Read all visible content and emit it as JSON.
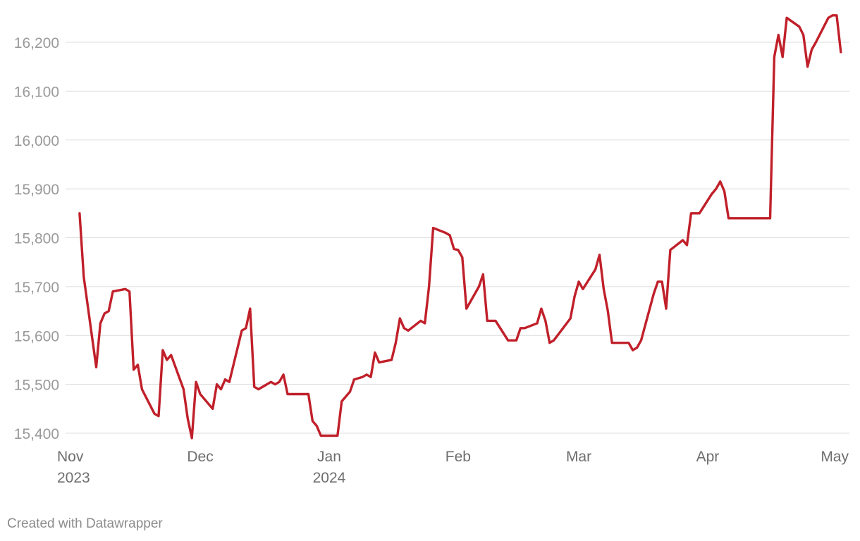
{
  "chart_data": {
    "type": "line",
    "title": "",
    "xlabel": "",
    "ylabel": "",
    "ylim": [
      15400,
      16200
    ],
    "grid": true,
    "x_range": [
      "2023-11-01",
      "2024-05-01"
    ],
    "yticks": [
      {
        "value": 15400,
        "label": "15,400"
      },
      {
        "value": 15500,
        "label": "15,500"
      },
      {
        "value": 15600,
        "label": "15,600"
      },
      {
        "value": 15700,
        "label": "15,700"
      },
      {
        "value": 15800,
        "label": "15,800"
      },
      {
        "value": 15900,
        "label": "15,900"
      },
      {
        "value": 16000,
        "label": "16,000"
      },
      {
        "value": 16100,
        "label": "16,100"
      },
      {
        "value": 16200,
        "label": "16,200"
      }
    ],
    "xticks": [
      {
        "date": "2023-11-01",
        "label": "Nov",
        "sublabel": "2023"
      },
      {
        "date": "2023-12-01",
        "label": "Dec",
        "sublabel": ""
      },
      {
        "date": "2024-01-01",
        "label": "Jan",
        "sublabel": "2024"
      },
      {
        "date": "2024-02-01",
        "label": "Feb",
        "sublabel": ""
      },
      {
        "date": "2024-03-01",
        "label": "Mar",
        "sublabel": ""
      },
      {
        "date": "2024-04-01",
        "label": "Apr",
        "sublabel": ""
      },
      {
        "date": "2024-05-01",
        "label": "May",
        "sublabel": ""
      }
    ],
    "series": [
      {
        "color": "#c0202a",
        "points": [
          [
            "2023-11-02",
            15850
          ],
          [
            "2023-11-03",
            15720
          ],
          [
            "2023-11-06",
            15535
          ],
          [
            "2023-11-07",
            15625
          ],
          [
            "2023-11-08",
            15645
          ],
          [
            "2023-11-09",
            15650
          ],
          [
            "2023-11-10",
            15690
          ],
          [
            "2023-11-13",
            15695
          ],
          [
            "2023-11-14",
            15690
          ],
          [
            "2023-11-15",
            15530
          ],
          [
            "2023-11-16",
            15540
          ],
          [
            "2023-11-17",
            15490
          ],
          [
            "2023-11-20",
            15440
          ],
          [
            "2023-11-21",
            15435
          ],
          [
            "2023-11-22",
            15570
          ],
          [
            "2023-11-23",
            15550
          ],
          [
            "2023-11-24",
            15560
          ],
          [
            "2023-11-27",
            15490
          ],
          [
            "2023-11-28",
            15430
          ],
          [
            "2023-11-29",
            15390
          ],
          [
            "2023-11-30",
            15505
          ],
          [
            "2023-12-01",
            15480
          ],
          [
            "2023-12-04",
            15450
          ],
          [
            "2023-12-05",
            15500
          ],
          [
            "2023-12-06",
            15490
          ],
          [
            "2023-12-07",
            15510
          ],
          [
            "2023-12-08",
            15505
          ],
          [
            "2023-12-11",
            15610
          ],
          [
            "2023-12-12",
            15615
          ],
          [
            "2023-12-13",
            15655
          ],
          [
            "2023-12-14",
            15495
          ],
          [
            "2023-12-15",
            15490
          ],
          [
            "2023-12-18",
            15505
          ],
          [
            "2023-12-19",
            15500
          ],
          [
            "2023-12-20",
            15505
          ],
          [
            "2023-12-21",
            15520
          ],
          [
            "2023-12-22",
            15480
          ],
          [
            "2023-12-27",
            15480
          ],
          [
            "2023-12-28",
            15425
          ],
          [
            "2023-12-29",
            15415
          ],
          [
            "2023-12-30",
            15395
          ],
          [
            "2024-01-03",
            15395
          ],
          [
            "2024-01-04",
            15465
          ],
          [
            "2024-01-06",
            15485
          ],
          [
            "2024-01-07",
            15510
          ],
          [
            "2024-01-09",
            15515
          ],
          [
            "2024-01-10",
            15520
          ],
          [
            "2024-01-11",
            15515
          ],
          [
            "2024-01-12",
            15565
          ],
          [
            "2024-01-13",
            15545
          ],
          [
            "2024-01-16",
            15550
          ],
          [
            "2024-01-17",
            15585
          ],
          [
            "2024-01-18",
            15635
          ],
          [
            "2024-01-19",
            15615
          ],
          [
            "2024-01-20",
            15610
          ],
          [
            "2024-01-23",
            15630
          ],
          [
            "2024-01-24",
            15625
          ],
          [
            "2024-01-25",
            15700
          ],
          [
            "2024-01-26",
            15820
          ],
          [
            "2024-01-29",
            15810
          ],
          [
            "2024-01-30",
            15805
          ],
          [
            "2024-01-31",
            15777
          ],
          [
            "2024-02-01",
            15775
          ],
          [
            "2024-02-02",
            15760
          ],
          [
            "2024-02-03",
            15655
          ],
          [
            "2024-02-06",
            15700
          ],
          [
            "2024-02-07",
            15725
          ],
          [
            "2024-02-08",
            15630
          ],
          [
            "2024-02-10",
            15630
          ],
          [
            "2024-02-13",
            15590
          ],
          [
            "2024-02-15",
            15590
          ],
          [
            "2024-02-16",
            15615
          ],
          [
            "2024-02-17",
            15615
          ],
          [
            "2024-02-20",
            15625
          ],
          [
            "2024-02-21",
            15655
          ],
          [
            "2024-02-22",
            15630
          ],
          [
            "2024-02-23",
            15585
          ],
          [
            "2024-02-24",
            15590
          ],
          [
            "2024-02-28",
            15635
          ],
          [
            "2024-02-29",
            15680
          ],
          [
            "2024-03-01",
            15710
          ],
          [
            "2024-03-02",
            15695
          ],
          [
            "2024-03-05",
            15735
          ],
          [
            "2024-03-06",
            15765
          ],
          [
            "2024-03-07",
            15695
          ],
          [
            "2024-03-08",
            15650
          ],
          [
            "2024-03-09",
            15585
          ],
          [
            "2024-03-13",
            15585
          ],
          [
            "2024-03-14",
            15570
          ],
          [
            "2024-03-15",
            15575
          ],
          [
            "2024-03-16",
            15590
          ],
          [
            "2024-03-19",
            15685
          ],
          [
            "2024-03-20",
            15710
          ],
          [
            "2024-03-21",
            15710
          ],
          [
            "2024-03-22",
            15655
          ],
          [
            "2024-03-23",
            15775
          ],
          [
            "2024-03-26",
            15795
          ],
          [
            "2024-03-27",
            15785
          ],
          [
            "2024-03-28",
            15850
          ],
          [
            "2024-03-30",
            15850
          ],
          [
            "2024-04-02",
            15890
          ],
          [
            "2024-04-03",
            15900
          ],
          [
            "2024-04-04",
            15915
          ],
          [
            "2024-04-05",
            15895
          ],
          [
            "2024-04-06",
            15840
          ],
          [
            "2024-04-16",
            15840
          ],
          [
            "2024-04-17",
            16170
          ],
          [
            "2024-04-18",
            16215
          ],
          [
            "2024-04-19",
            16170
          ],
          [
            "2024-04-20",
            16250
          ],
          [
            "2024-04-23",
            16232
          ],
          [
            "2024-04-24",
            16215
          ],
          [
            "2024-04-25",
            16150
          ],
          [
            "2024-04-26",
            16185
          ],
          [
            "2024-04-27",
            16200
          ],
          [
            "2024-04-30",
            16250
          ],
          [
            "2024-05-01",
            16255
          ],
          [
            "2024-05-02",
            16255
          ],
          [
            "2024-05-03",
            16180
          ]
        ]
      }
    ]
  },
  "footer": {
    "credit": "Created with Datawrapper"
  }
}
